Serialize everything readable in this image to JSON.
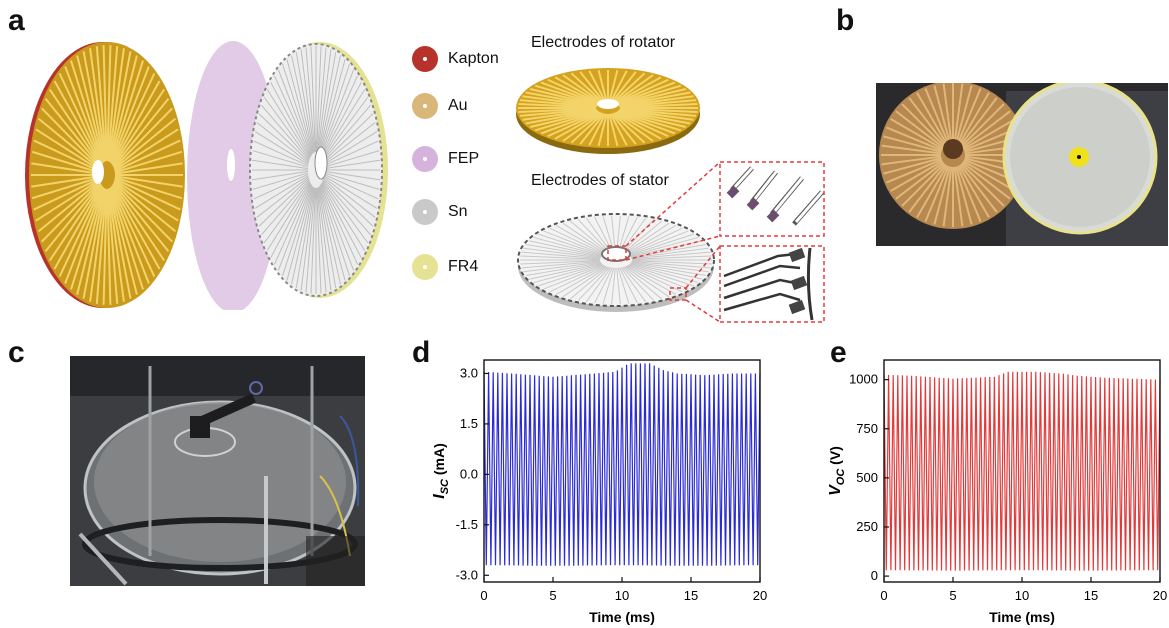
{
  "panels": {
    "a": "a",
    "b": "b",
    "c": "c",
    "d": "d",
    "e": "e"
  },
  "legend": [
    {
      "label": "Kapton",
      "color": "#b8322c"
    },
    {
      "label": "Au",
      "color": "#d9b77a"
    },
    {
      "label": "FEP",
      "color": "#d6b3dc"
    },
    {
      "label": "Sn",
      "color": "#c9c9c9"
    },
    {
      "label": "FR4",
      "color": "#e6e294"
    }
  ],
  "captions": {
    "rotator": "Electrodes of rotator",
    "stator": "Electrodes of stator"
  },
  "colors": {
    "gold": "#d4a21e",
    "kapton": "#b8322c",
    "fep": "#e2cbe6",
    "isc_line": "#2b2bd6",
    "voc_line": "#e23a3a",
    "callout": "#e33b3b"
  },
  "chart_data": [
    {
      "type": "line",
      "panel": "d",
      "xlabel": "Time (ms)",
      "ylabel_main": "I",
      "ylabel_sub": "SC",
      "ylabel_unit": " (mA)",
      "xlim": [
        0,
        20
      ],
      "ylim": [
        -3.2,
        3.4
      ],
      "xticks": [
        "0",
        "5",
        "10",
        "15",
        "20"
      ],
      "xtick_values": [
        0,
        5,
        10,
        15,
        20
      ],
      "yticks": [
        "3.0",
        "1.5",
        "0.0",
        "-1.5",
        "-3.0"
      ],
      "ytick_values": [
        3.0,
        1.5,
        0.0,
        -1.5,
        -3.0
      ],
      "series": [
        {
          "cycles": 60,
          "peak_envelope": {
            "x": [
              0,
              2,
              5,
              8,
              9.5,
              10.5,
              12,
              13,
              14,
              16,
              18,
              20
            ],
            "y": [
              3.05,
              3.0,
              2.9,
              3.0,
              3.05,
              3.3,
              3.3,
              3.1,
              3.0,
              2.95,
              3.0,
              3.0
            ]
          },
          "trough_envelope": {
            "x": [
              0,
              5,
              10,
              15,
              20
            ],
            "y": [
              -2.7,
              -2.72,
              -2.7,
              -2.72,
              -2.7
            ]
          }
        }
      ]
    },
    {
      "type": "line",
      "panel": "e",
      "xlabel": "Time (ms)",
      "ylabel_main": "V",
      "ylabel_sub": "OC",
      "ylabel_unit": " (V)",
      "xlim": [
        0,
        20
      ],
      "ylim": [
        -30,
        1100
      ],
      "xticks": [
        "0",
        "5",
        "10",
        "15",
        "20"
      ],
      "xtick_values": [
        0,
        5,
        10,
        15,
        20
      ],
      "yticks": [
        "1000",
        "750",
        "500",
        "250",
        "0"
      ],
      "ytick_values": [
        1000,
        750,
        500,
        250,
        0
      ],
      "series": [
        {
          "cycles": 60,
          "peak_envelope": {
            "x": [
              0,
              2,
              5,
              8,
              9,
              11,
              13,
              14,
              16,
              18,
              20
            ],
            "y": [
              1025,
              1020,
              1005,
              1015,
              1040,
              1040,
              1030,
              1020,
              1010,
              1005,
              1000
            ]
          },
          "trough_envelope": {
            "x": [
              0,
              5,
              10,
              15,
              20
            ],
            "y": [
              30,
              28,
              30,
              28,
              30
            ]
          }
        }
      ]
    }
  ]
}
